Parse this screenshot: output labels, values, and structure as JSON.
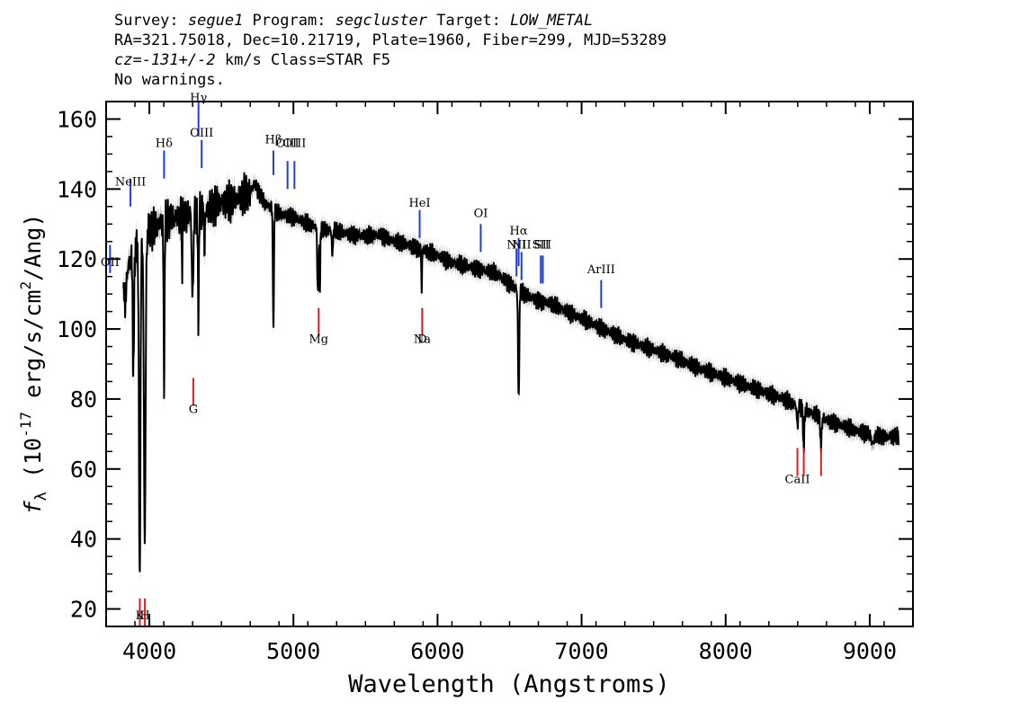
{
  "header": {
    "l1_survey_label": "Survey: ",
    "l1_survey": "segue1",
    "l1_program_label": " Program: ",
    "l1_program": "segcluster",
    "l1_target_label": " Target: ",
    "l1_target": "LOW_METAL",
    "l2": "RA=321.75018, Dec=10.21719, Plate=1960, Fiber=299, MJD=53289",
    "l3_cz": "cz=-131+/-2",
    "l3_rest": " km/s Class=STAR F5",
    "l4": "No warnings."
  },
  "chart_data": {
    "type": "line",
    "xlabel": "Wavelength (Angstroms)",
    "ylabel_prefix": "f",
    "ylabel_sub": "λ",
    "ylabel_mid1": " (10",
    "ylabel_exp1": "-17",
    "ylabel_mid2": " erg/s/cm",
    "ylabel_exp2": "2",
    "ylabel_end": "/Ang)",
    "xlim": [
      3700,
      9300
    ],
    "ylim": [
      15,
      165
    ],
    "xticks": [
      4000,
      5000,
      6000,
      7000,
      8000,
      9000
    ],
    "yticks": [
      20,
      40,
      60,
      80,
      100,
      120,
      140,
      160
    ],
    "grid": false,
    "colors": {
      "spectrum": "#000000",
      "error_band": "#bdbdbd",
      "emission": "#1f3fd6",
      "absorption": "#d62020"
    },
    "continuum": [
      [
        3820,
        110
      ],
      [
        3850,
        118
      ],
      [
        3900,
        122
      ],
      [
        3950,
        126
      ],
      [
        4000,
        128
      ],
      [
        4100,
        131
      ],
      [
        4200,
        132
      ],
      [
        4300,
        133
      ],
      [
        4400,
        134
      ],
      [
        4500,
        136
      ],
      [
        4600,
        137
      ],
      [
        4700,
        139
      ],
      [
        4730,
        141.5
      ],
      [
        4800,
        136
      ],
      [
        4900,
        133
      ],
      [
        5000,
        132
      ],
      [
        5100,
        130
      ],
      [
        5200,
        128.5
      ],
      [
        5300,
        128
      ],
      [
        5400,
        127
      ],
      [
        5500,
        126.5
      ],
      [
        5600,
        127
      ],
      [
        5700,
        125
      ],
      [
        5800,
        124
      ],
      [
        5900,
        122.5
      ],
      [
        6000,
        121
      ],
      [
        6100,
        119
      ],
      [
        6200,
        118
      ],
      [
        6300,
        117
      ],
      [
        6400,
        116
      ],
      [
        6500,
        113
      ],
      [
        6600,
        110
      ],
      [
        6700,
        108
      ],
      [
        6800,
        107
      ],
      [
        6900,
        105
      ],
      [
        7000,
        103
      ],
      [
        7100,
        101
      ],
      [
        7200,
        99
      ],
      [
        7300,
        97
      ],
      [
        7400,
        95.5
      ],
      [
        7500,
        94
      ],
      [
        7600,
        92.5
      ],
      [
        7700,
        91
      ],
      [
        7800,
        89
      ],
      [
        7900,
        87.5
      ],
      [
        8000,
        86
      ],
      [
        8100,
        84.5
      ],
      [
        8200,
        83
      ],
      [
        8300,
        81.5
      ],
      [
        8400,
        80
      ],
      [
        8500,
        78
      ],
      [
        8600,
        76
      ],
      [
        8700,
        74
      ],
      [
        8800,
        72.5
      ],
      [
        8900,
        71
      ],
      [
        9000,
        70
      ],
      [
        9100,
        69
      ],
      [
        9200,
        69.5
      ]
    ],
    "absorption_features": [
      [
        3835,
        108,
        15
      ],
      [
        3889,
        86,
        10
      ],
      [
        3933,
        28,
        12
      ],
      [
        3968,
        40,
        14
      ],
      [
        4102,
        84,
        8
      ],
      [
        4227,
        115,
        5
      ],
      [
        4300,
        108,
        12
      ],
      [
        4340,
        103,
        8
      ],
      [
        4383,
        120,
        6
      ],
      [
        4861,
        98,
        8
      ],
      [
        5167,
        112,
        6
      ],
      [
        5173,
        113,
        6
      ],
      [
        5184,
        111,
        6
      ],
      [
        5270,
        120,
        8
      ],
      [
        5890,
        111,
        6
      ],
      [
        6563,
        80,
        10
      ],
      [
        8498,
        72,
        10
      ],
      [
        8542,
        66,
        10
      ],
      [
        8662,
        66,
        10
      ],
      [
        9020,
        67,
        20
      ]
    ],
    "emission_lines": [
      {
        "label": "OII",
        "x": 3727,
        "y_top": 124,
        "y_bot": 116,
        "label_y": 118
      },
      {
        "label": "NeIII",
        "x": 3869,
        "y_top": 143,
        "y_bot": 135,
        "label_y": 141
      },
      {
        "label": "Hδ",
        "x": 4102,
        "y_top": 151,
        "y_bot": 143,
        "label_y": 152
      },
      {
        "label": "Hγ",
        "x": 4341,
        "y_top": 165,
        "y_bot": 155,
        "label_y": 165
      },
      {
        "label": "OIII",
        "x": 4363,
        "y_top": 154,
        "y_bot": 146,
        "label_y": 155
      },
      {
        "label": "Hβ",
        "x": 4861,
        "y_top": 151,
        "y_bot": 144,
        "label_y": 153
      },
      {
        "label": "OIII",
        "x": 4959,
        "y_top": 148,
        "y_bot": 140,
        "label_y": 152
      },
      {
        "label": "OIII",
        "x": 5007,
        "y_top": 148,
        "y_bot": 140,
        "label_y": 152
      },
      {
        "label": "HeI",
        "x": 5876,
        "y_top": 134,
        "y_bot": 126,
        "label_y": 135
      },
      {
        "label": "OI",
        "x": 6300,
        "y_top": 130,
        "y_bot": 122,
        "label_y": 132
      },
      {
        "label": "NII",
        "x": 6548,
        "y_top": 123,
        "y_bot": 115,
        "label_y": 123
      },
      {
        "label": "Hα",
        "x": 6563,
        "y_top": 126,
        "y_bot": 118,
        "label_y": 127
      },
      {
        "label": "NII",
        "x": 6583,
        "y_top": 122,
        "y_bot": 114,
        "label_y": 123
      },
      {
        "label": "SII",
        "x": 6717,
        "y_top": 121,
        "y_bot": 113,
        "label_y": 123
      },
      {
        "label": "SII",
        "x": 6731,
        "y_top": 121,
        "y_bot": 113,
        "label_y": 123
      },
      {
        "label": "ArIII",
        "x": 7136,
        "y_top": 114,
        "y_bot": 106,
        "label_y": 116
      }
    ],
    "absorption_lines": [
      {
        "label": "K",
        "x": 3934,
        "y_top": 23,
        "y_bot": 15,
        "label_y": 17
      },
      {
        "label": "H",
        "x": 3969,
        "y_top": 23,
        "y_bot": 15,
        "label_y": 17
      },
      {
        "label": "G",
        "x": 4305,
        "y_top": 86,
        "y_bot": 78,
        "label_y": 76
      },
      {
        "label": "Mg",
        "x": 5175,
        "y_top": 106,
        "y_bot": 98,
        "label_y": 96
      },
      {
        "label": "Na",
        "x": 5894,
        "y_top": 106,
        "y_bot": 98,
        "label_y": 96
      },
      {
        "label": "D",
        "x": 5894,
        "y_top": 106,
        "y_bot": 98,
        "label_y": 96
      },
      {
        "label": "CaII",
        "x": 8498,
        "y_top": 66,
        "y_bot": 58,
        "label_y": 56
      },
      {
        "label": "",
        "x": 8542,
        "y_top": 66,
        "y_bot": 58,
        "label_y": 56
      },
      {
        "label": "",
        "x": 8662,
        "y_top": 66,
        "y_bot": 58,
        "label_y": 56
      }
    ]
  }
}
